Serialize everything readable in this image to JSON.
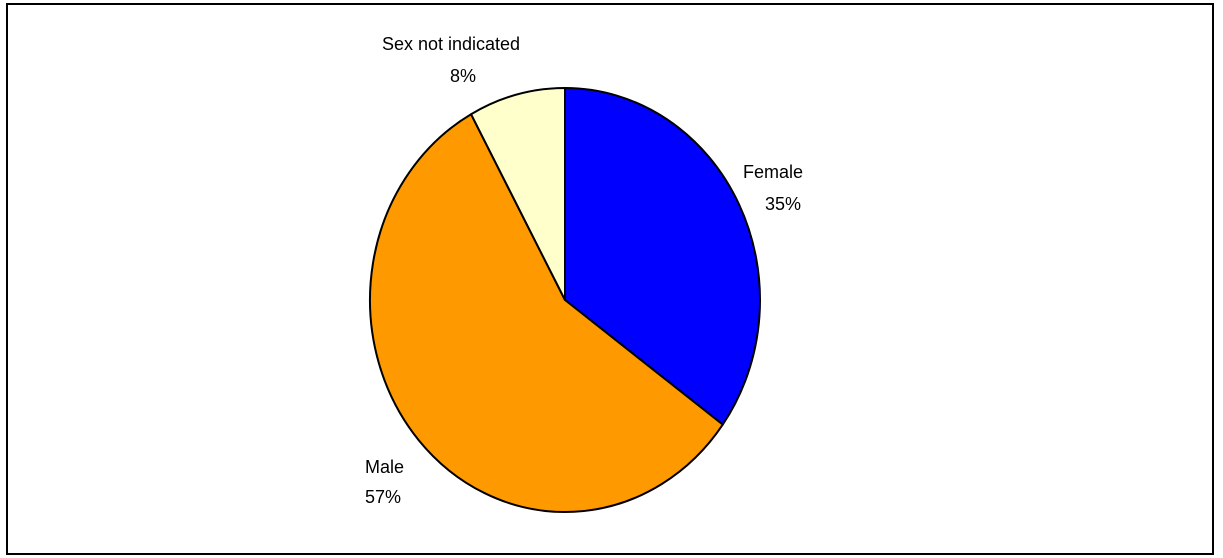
{
  "chart_data": {
    "type": "pie",
    "title": "",
    "slices": [
      {
        "label": "Female",
        "value_label": "35%",
        "value": 35,
        "color": "#0000ff"
      },
      {
        "label": "Male",
        "value_label": "57%",
        "value": 57,
        "color": "#ff9900"
      },
      {
        "label": "Sex not indicated",
        "value_label": "8%",
        "value": 8,
        "color": "#ffffcc"
      }
    ],
    "start_angle_deg": 0,
    "direction": "clockwise",
    "legend": "none",
    "slice_border_color": "#000000"
  }
}
